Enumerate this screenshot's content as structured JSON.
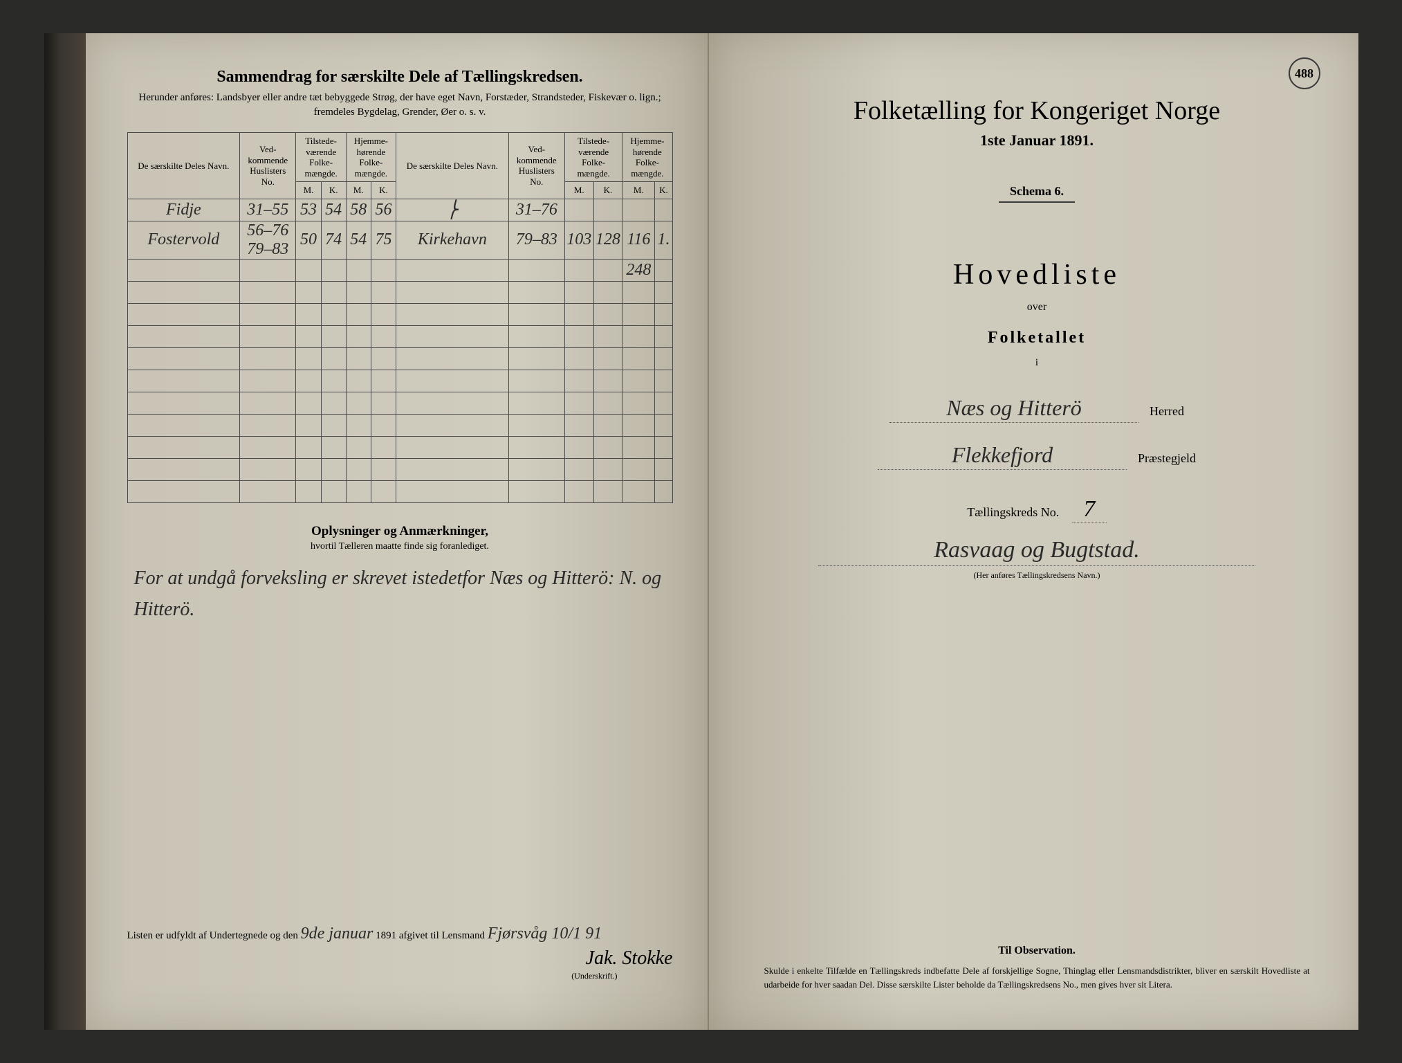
{
  "page_number": "488",
  "left": {
    "title": "Sammendrag for særskilte Dele af Tællingskredsen.",
    "subtitle": "Herunder anføres: Landsbyer eller andre tæt bebyggede Strøg, der have eget Navn, Forstæder, Strandsteder, Fiskevær o. lign.; fremdeles Bygdelag, Grender, Øer o. s. v.",
    "headers": {
      "name": "De særskilte Deles Navn.",
      "huslister": "Ved-kommende Huslisters No.",
      "tilstede": "Tilstede-værende Folke-mængde.",
      "hjemme": "Hjemme-hørende Folke-mængde.",
      "m": "M.",
      "k": "K."
    },
    "rows": [
      {
        "name": "Fidje",
        "huslister": "31–55",
        "tm": "53",
        "tk": "54",
        "hm": "58",
        "hk": "56",
        "name2": "⎬",
        "huslister2": "31–76",
        "tm2": "",
        "tk2": "",
        "hm2": "",
        "hk2": ""
      },
      {
        "name": "Fostervold",
        "huslister": "56–76 79–83",
        "tm": "50",
        "tk": "74",
        "hm": "54",
        "hk": "75",
        "name2": "Kirkehavn",
        "huslister2": "79–83",
        "tm2": "103",
        "tk2": "128",
        "hm2": "116",
        "hk2": "1."
      },
      {
        "name": "",
        "huslister": "",
        "tm": "",
        "tk": "",
        "hm": "",
        "hk": "",
        "name2": "",
        "huslister2": "",
        "tm2": "",
        "tk2": "",
        "hm2": "248",
        "hk2": ""
      }
    ],
    "notes_title": "Oplysninger og Anmærkninger,",
    "notes_sub": "hvortil Tælleren maatte finde sig foranlediget.",
    "notes_text": "For at undgå forveksling er skrevet istedetfor Næs og Hitterö: N. og Hitterö.",
    "footer_prefix": "Listen er udfyldt af Undertegnede og den",
    "footer_date": "9de januar",
    "footer_year": "1891 afgivet til Lensmand",
    "footer_place": "Fjørsvåg 10/1 91",
    "signature": "Jak. Stokke",
    "signature_label": "(Underskrift.)"
  },
  "right": {
    "title": "Folketælling for Kongeriget Norge",
    "date": "1ste Januar 1891.",
    "schema": "Schema 6.",
    "hovedliste": "Hovedliste",
    "over": "over",
    "folketallet": "Folketallet",
    "i": "i",
    "herred_value": "Næs og Hitterö",
    "herred_label": "Herred",
    "praestegjeld_value": "Flekkefjord",
    "praestegjeld_label": "Præstegjeld",
    "kreds_label": "Tællingskreds No.",
    "kreds_no": "7",
    "kreds_name": "Rasvaag og Bugtstad.",
    "kreds_hint": "(Her anføres Tællingskredsens Navn.)",
    "obs_title": "Til Observation.",
    "obs_text": "Skulde i enkelte Tilfælde en Tællingskreds indbefatte Dele af forskjellige Sogne, Thinglag eller Lensmandsdistrikter, bliver en særskilt Hovedliste at udarbeide for hver saadan Del. Disse særskilte Lister beholde da Tællingskredsens No., men gives hver sit Litera."
  },
  "colors": {
    "ink": "#2a2a2a",
    "paper": "#cec9bc",
    "border": "#4a4a4a"
  }
}
